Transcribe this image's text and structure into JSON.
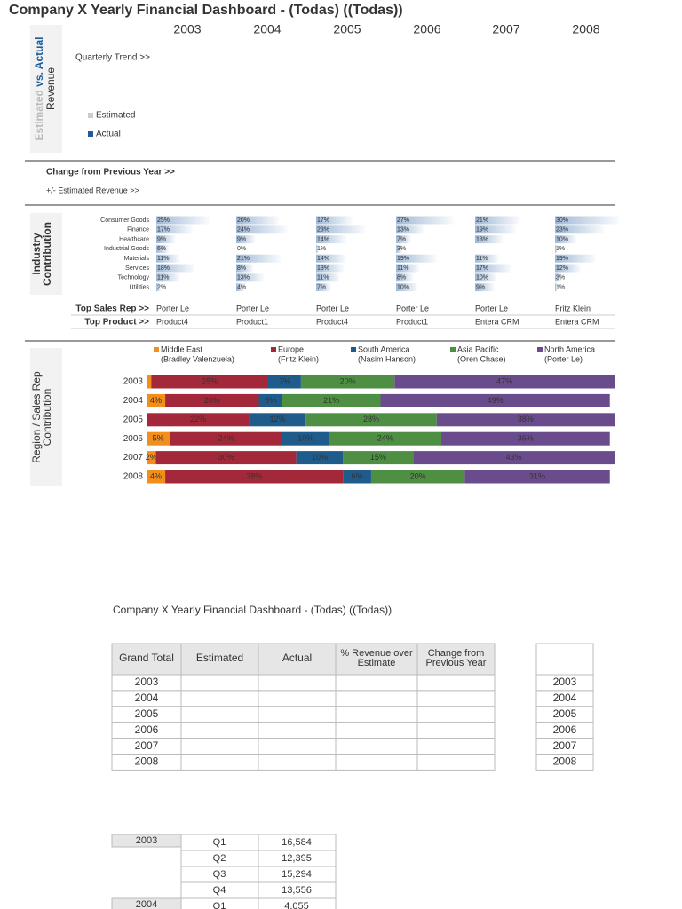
{
  "title": "Company X Yearly Financial Dashboard - (Todas) ((Todas))",
  "years": [
    "2003",
    "2004",
    "2005",
    "2006",
    "2007",
    "2008"
  ],
  "revenue_panel": {
    "side_label": {
      "part1": "Estimated",
      "part2": "vs. Actual",
      "line2": "Revenue"
    },
    "quarterly_trend": "Quarterly Trend >>",
    "legend": [
      "Estimated",
      "Actual"
    ]
  },
  "change_panel": {
    "heading": "Change from Previous Year >>",
    "subheading": "+/- Estimated Revenue >>"
  },
  "industry": {
    "side_label": [
      "Industry",
      "Contribution"
    ],
    "industries": [
      "Consumer Goods",
      "Finance",
      "Healthcare",
      "Industrial Goods",
      "Materials",
      "Services",
      "Technology",
      "Utilities"
    ],
    "columns": [
      {
        "values": [
          25,
          17,
          9,
          6,
          11,
          18,
          11,
          2
        ],
        "value_labels": [
          "25%",
          "17%",
          "9%",
          "6%",
          "11%",
          "18%",
          "11%",
          "2%"
        ]
      },
      {
        "values": [
          20,
          24,
          9,
          0,
          21,
          8,
          13,
          4
        ],
        "value_labels": [
          "20%",
          "24%",
          "9%",
          "0%",
          "21%",
          "8%",
          "13%",
          "4%"
        ]
      },
      {
        "values": [
          17,
          23,
          14,
          1,
          14,
          13,
          11,
          7
        ],
        "value_labels": [
          "17%",
          "23%",
          "14%",
          "1%",
          "14%",
          "13%",
          "11%",
          "7%"
        ]
      },
      {
        "values": [
          27,
          13,
          7,
          3,
          19,
          11,
          8,
          10
        ],
        "value_labels": [
          "27%",
          "13%",
          "7%",
          "3%",
          "19%",
          "11%",
          "8%",
          "10%"
        ]
      },
      {
        "values": [
          21,
          19,
          13,
          null,
          11,
          17,
          10,
          9
        ],
        "value_labels": [
          "21%",
          "19%",
          "13%",
          null,
          "11%",
          "17%",
          "10%",
          "9%"
        ]
      },
      {
        "values": [
          30,
          23,
          10,
          1,
          19,
          12,
          3,
          1
        ],
        "value_labels": [
          "30%",
          "23%",
          "10%",
          "1%",
          "19%",
          "12%",
          "3%",
          "1%"
        ]
      }
    ],
    "top_sales_rep_label": "Top Sales Rep >>",
    "top_sales_reps": [
      "Porter Le",
      "Porter Le",
      "Porter Le",
      "Porter Le",
      "Porter Le",
      "Fritz Klein"
    ],
    "top_product_label": "Top Product >>",
    "top_products": [
      "Product4",
      "Product1",
      "Product4",
      "Product1",
      "Entera CRM",
      "Entera CRM"
    ]
  },
  "chart_data": {
    "type": "bar",
    "orientation": "horizontal",
    "stacked": true,
    "side_label": [
      "Region / Sales Rep",
      "Contribution"
    ],
    "categories": [
      "2003",
      "2004",
      "2005",
      "2006",
      "2007",
      "2008"
    ],
    "xlim": [
      0,
      100
    ],
    "series": [
      {
        "name": "Middle East",
        "rep": "(Bradley Valenzuela)",
        "color": "#f28e1c",
        "values": [
          1,
          4,
          0,
          5,
          2,
          4
        ],
        "value_labels": [
          null,
          "4%",
          null,
          "5%",
          "2%",
          "4%"
        ]
      },
      {
        "name": "Europe",
        "rep": "(Fritz Klein)",
        "color": "#a3293a",
        "values": [
          25,
          20,
          22,
          24,
          30,
          38
        ],
        "value_labels": [
          "25%",
          "20%",
          "22%",
          "24%",
          "30%",
          "38%"
        ]
      },
      {
        "name": "South America",
        "rep": "(Nasim Hanson)",
        "color": "#1f5c8b",
        "values": [
          7,
          5,
          12,
          10,
          10,
          6
        ],
        "value_labels": [
          "7%",
          "5%",
          "12%",
          "10%",
          "10%",
          "6%"
        ]
      },
      {
        "name": "Asia Pacific",
        "rep": "(Oren Chase)",
        "color": "#4e8f43",
        "values": [
          20,
          21,
          28,
          24,
          15,
          20
        ],
        "value_labels": [
          "20%",
          "21%",
          "28%",
          "24%",
          "15%",
          "20%"
        ]
      },
      {
        "name": "North America",
        "rep": "(Porter Le)",
        "color": "#6a4c8c",
        "values": [
          47,
          49,
          38,
          36,
          43,
          31
        ],
        "value_labels": [
          "47%",
          "49%",
          "38%",
          "36%",
          "43%",
          "31%"
        ]
      }
    ]
  },
  "summary": {
    "header": [
      "Grand Total",
      "Estimated",
      "Actual",
      [
        "% Revenue over",
        "Estimate"
      ],
      [
        "Change from",
        "Previous Year"
      ]
    ]
  },
  "quarterly": [
    {
      "year": "2003",
      "quarters": [
        [
          "Q1",
          "16,584"
        ],
        [
          "Q2",
          "12,395"
        ],
        [
          "Q3",
          "15,294"
        ],
        [
          "Q4",
          "13,556"
        ]
      ]
    },
    {
      "year": "2004",
      "quarters": [
        [
          "Q1",
          "4,055"
        ]
      ]
    }
  ]
}
